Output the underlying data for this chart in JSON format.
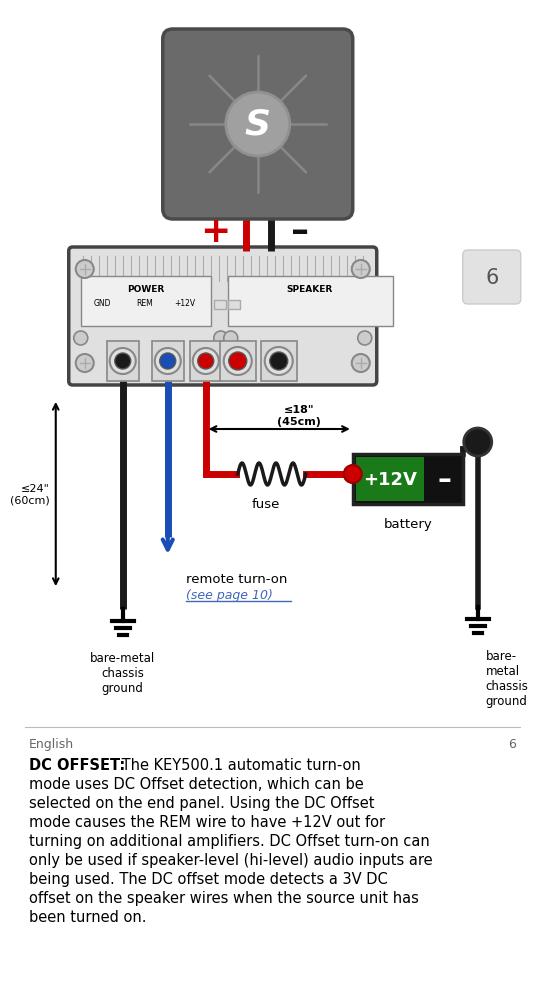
{
  "bg_color": "#ffffff",
  "page_num": "6",
  "footer_left": "English",
  "bold_text": "DC OFFSET:",
  "wire_red": "#cc0000",
  "wire_black": "#1a1a1a",
  "wire_blue": "#1a4db5",
  "amp_fill": "#e0e0e0",
  "amp_stroke": "#444444",
  "speaker_fill": "#6a6a6a",
  "speaker_dark": "#4a4a4a",
  "battery_fill": "#111111",
  "battery_green": "#1a7a1a",
  "red_dot": "#cc0000",
  "black_dot": "#111111",
  "plus_color": "#cc0000",
  "minus_color": "#111111",
  "page_bg": "#e0e0e0",
  "dim_label": "≤18\"\n(45cm)",
  "dim_label2": "≤24\"\n(60cm)",
  "ground1_label": "bare-metal\nchassis\nground",
  "ground2_label": "bare-\nmetal\nchassis\nground",
  "battery_plus": "+12V",
  "battery_minus": "–",
  "battery_label": "battery",
  "fuse_label": "fuse",
  "remote_label1": "remote turn-on",
  "remote_label2": "(see page 10)",
  "amp_power": "POWER",
  "amp_gnd": "GND",
  "amp_rem": "REM",
  "amp_12v": "+12V",
  "amp_speaker": "SPEAKER",
  "body_bold": "DC OFFSET:",
  "body_text_lines": [
    " The KEY500.1 automatic turn-on",
    "mode uses DC Offset detection, which can be",
    "selected on the end panel. Using the DC Offset",
    "mode causes the REM wire to have +12V out for",
    "turning on additional amplifiers. DC Offset turn-on can",
    "only be used if speaker-level (hi-level) audio inputs are",
    "being used. The DC offset mode detects a 3V DC",
    "offset on the speaker wires when the source unit has",
    "been turned on."
  ]
}
